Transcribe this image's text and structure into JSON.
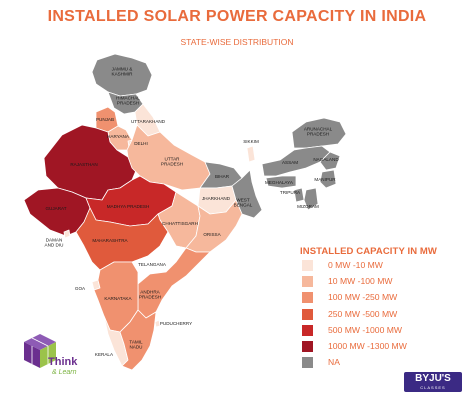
{
  "title": "INSTALLED SOLAR POWER CAPACITY IN INDIA",
  "subtitle": "STATE-WISE DISTRIBUTION",
  "legend": {
    "title": "INSTALLED CAPACITY IN MW",
    "items": [
      {
        "label": "0 MW -10 MW",
        "color": "#fbe4d8"
      },
      {
        "label": "10 MW -100 MW",
        "color": "#f6b89c"
      },
      {
        "label": "100 MW -250 MW",
        "color": "#f0916f"
      },
      {
        "label": "250 MW -500 MW",
        "color": "#e05a3c"
      },
      {
        "label": "500 MW -1000 MW",
        "color": "#c82828"
      },
      {
        "label": "1000 MW -1300 MW",
        "color": "#a01624"
      },
      {
        "label": "NA",
        "color": "#8a8a8a"
      }
    ]
  },
  "states": {
    "jammu_kashmir": {
      "label": "JAMMU &\nKASHMIR",
      "color": "#8a8a8a"
    },
    "himachal": {
      "label": "HIMACHAL\nPRADESH",
      "color": "#8a8a8a"
    },
    "punjab": {
      "label": "PUNJAB",
      "color": "#f0916f"
    },
    "uttarakhand": {
      "label": "UTTARAKHAND",
      "color": "#fbe4d8"
    },
    "haryana": {
      "label": "HARYANA",
      "color": "#f6b89c"
    },
    "delhi": {
      "label": "DELHI",
      "color": "#fbe4d8"
    },
    "rajasthan": {
      "label": "RAJASTHAN",
      "color": "#a01624"
    },
    "uttar_pradesh": {
      "label": "UTTAR\nPRADESH",
      "color": "#f6b89c"
    },
    "gujarat": {
      "label": "GUJARAT",
      "color": "#a01624"
    },
    "madhya_pradesh": {
      "label": "MADHYA PRADESH",
      "color": "#c82828"
    },
    "bihar": {
      "label": "BIHAR",
      "color": "#8a8a8a"
    },
    "jharkhand": {
      "label": "JHARKHAND",
      "color": "#fbe4d8"
    },
    "west_bengal": {
      "label": "WEST\nBENGAL",
      "color": "#8a8a8a"
    },
    "chhattisgarh": {
      "label": "CHHATTISGARH",
      "color": "#f6b89c"
    },
    "orissa": {
      "label": "ORISSA",
      "color": "#f6b89c"
    },
    "maharashtra": {
      "label": "MAHARASHTRA",
      "color": "#e05a3c"
    },
    "daman_diu": {
      "label": "DAMAN\nAND DIU",
      "color": "#fbe4d8"
    },
    "telangana": {
      "label": "TELANGANA",
      "color": "#ffffff"
    },
    "andhra_pradesh": {
      "label": "ANDHRA\nPRADESH",
      "color": "#f0916f"
    },
    "goa": {
      "label": "GOA",
      "color": "#fbe4d8"
    },
    "karnataka": {
      "label": "KARNATAKA",
      "color": "#f0916f"
    },
    "kerala": {
      "label": "KERALA",
      "color": "#fbe4d8"
    },
    "tamil_nadu": {
      "label": "TAMIL\nNADU",
      "color": "#f0916f"
    },
    "puducherry": {
      "label": "PUDUCHERRY",
      "color": "#fbe4d8"
    },
    "sikkim": {
      "label": "SIKKIM",
      "color": "#fbe4d8"
    },
    "arunachal": {
      "label": "ARUNACHAL\nPRADESH",
      "color": "#8a8a8a"
    },
    "assam": {
      "label": "ASSAM",
      "color": "#8a8a8a"
    },
    "nagaland": {
      "label": "NAGALAND",
      "color": "#8a8a8a"
    },
    "meghalaya": {
      "label": "MEGHALAYA",
      "color": "#8a8a8a"
    },
    "manipur": {
      "label": "MANIPUR",
      "color": "#8a8a8a"
    },
    "tripura": {
      "label": "TRIPURA",
      "color": "#8a8a8a"
    },
    "mizoram": {
      "label": "MIZORAM",
      "color": "#8a8a8a"
    }
  },
  "branding": {
    "left_logo_text": "Think",
    "left_logo_subtext": "& Learn",
    "right_logo_text": "BYJU'S",
    "right_logo_subtext": "CLASSES"
  }
}
